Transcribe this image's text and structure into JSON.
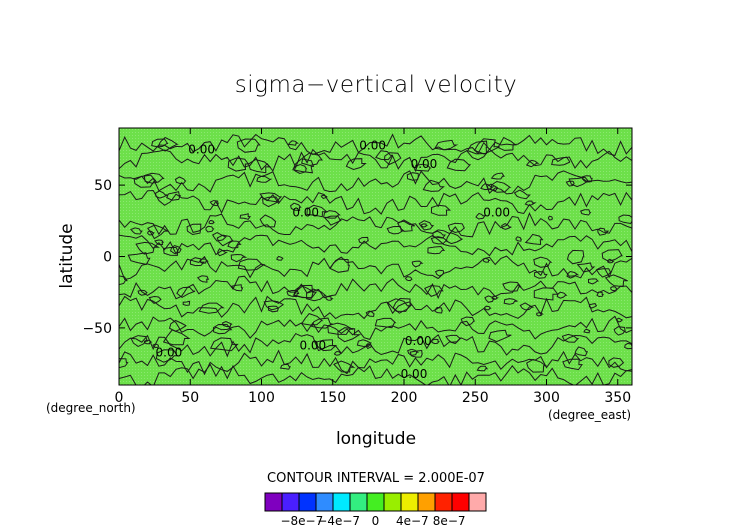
{
  "chart_data": {
    "type": "contour",
    "title": "sigma−vertical velocity",
    "xlabel": "longitude",
    "ylabel": "latitude",
    "x_unit": "(degree_east)",
    "y_unit": "(degree_north)",
    "xlim": [
      0,
      360
    ],
    "ylim": [
      -90,
      90
    ],
    "x_ticks": [
      0,
      50,
      100,
      150,
      200,
      250,
      300,
      350
    ],
    "y_ticks": [
      -50,
      0,
      50
    ],
    "y_tick_labels": [
      "−50",
      "0",
      "50"
    ],
    "contour_interval_label": "CONTOUR INTERVAL = 2.000E-07",
    "contour_labels": [
      {
        "text": "0.00",
        "lon": 58,
        "lat": 72
      },
      {
        "text": "0.00",
        "lon": 178,
        "lat": 75
      },
      {
        "text": "0.00",
        "lon": 214,
        "lat": 62
      },
      {
        "text": "0.00",
        "lon": 131,
        "lat": 28
      },
      {
        "text": "0.00",
        "lon": 265,
        "lat": 28
      },
      {
        "text": "0.00",
        "lon": 210,
        "lat": -62
      },
      {
        "text": "0.00",
        "lon": 136,
        "lat": -65
      },
      {
        "text": "0.00",
        "lon": 35,
        "lat": -70
      },
      {
        "text": "0.00",
        "lon": 207,
        "lat": -85
      }
    ],
    "fill_color": "#6de04a",
    "colorbar": {
      "colors": [
        "#7f00bf",
        "#4a1fff",
        "#0033ff",
        "#2f8cff",
        "#00eaff",
        "#33ee80",
        "#44ee22",
        "#99ee00",
        "#eeee00",
        "#ffa000",
        "#ff2200",
        "#ff0000",
        "#ffaaaa"
      ],
      "tick_labels": [
        "−8e−7",
        "−4e−7",
        "0",
        "4e−7",
        "8e−7"
      ],
      "tick_values": [
        -8e-07,
        -4e-07,
        0,
        4e-07,
        8e-07
      ]
    }
  }
}
